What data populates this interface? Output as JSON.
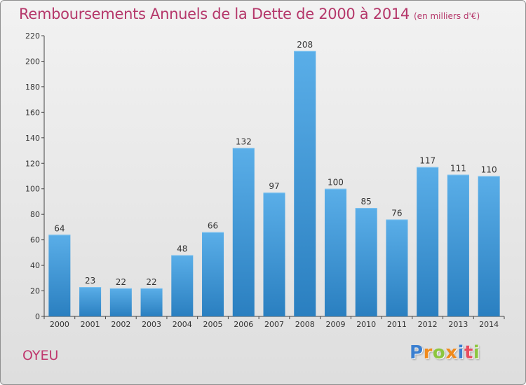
{
  "chart_data": {
    "type": "bar",
    "title": "Remboursements Annuels de la Dette de 2000 à 2014",
    "subtitle": "(en milliers d'€)",
    "categories": [
      "2000",
      "2001",
      "2002",
      "2003",
      "2004",
      "2005",
      "2006",
      "2007",
      "2008",
      "2009",
      "2010",
      "2011",
      "2012",
      "2013",
      "2014"
    ],
    "values": [
      64,
      23,
      22,
      22,
      48,
      66,
      132,
      97,
      208,
      100,
      85,
      76,
      117,
      111,
      110
    ],
    "ylim": [
      0,
      220
    ],
    "yticks": [
      0,
      20,
      40,
      60,
      80,
      100,
      120,
      140,
      160,
      180,
      200,
      220
    ],
    "grid": false,
    "bar_color_top": "#5aaee8",
    "bar_color_bottom": "#2a7fc0"
  },
  "footer": {
    "commune": "OYEU",
    "logo_letters": [
      {
        "ch": "P",
        "color": "#3a7fd0"
      },
      {
        "ch": "r",
        "color": "#f08a1c"
      },
      {
        "ch": "o",
        "color": "#8cc63f"
      },
      {
        "ch": "x",
        "color": "#f08a1c"
      },
      {
        "ch": "i",
        "color": "#3a7fd0"
      },
      {
        "ch": "t",
        "color": "#e84c5f"
      },
      {
        "ch": "i",
        "color": "#8cc63f"
      }
    ]
  }
}
